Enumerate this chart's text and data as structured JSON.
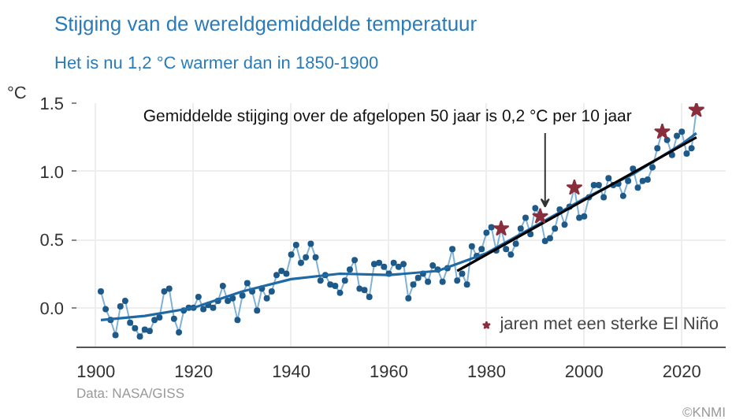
{
  "chart_data": {
    "type": "line",
    "title": "Stijging van de wereldgemiddelde temperatuur",
    "subtitle": "Het is nu 1,2 °C warmer dan in 1850-1900",
    "ylabel": "°C",
    "xlim": [
      1896,
      2029
    ],
    "xticks": [
      1900,
      1920,
      1940,
      1960,
      1980,
      2000,
      2020
    ],
    "ylim": [
      -0.29,
      1.5
    ],
    "yticks": [
      {
        "value": 0,
        "label": "0.0"
      },
      {
        "value": 0.5,
        "label": "0.5"
      },
      {
        "value": 1,
        "label": "1.0"
      },
      {
        "value": 1.5,
        "label": "1.5"
      }
    ],
    "grid": true,
    "legend": "bottom right",
    "marker": "circle",
    "line_style": "solid",
    "series": [
      {
        "color": "#4a90c4",
        "x": [
          1901,
          1902,
          1903,
          1904,
          1905,
          1906,
          1907,
          1908,
          1909,
          1910,
          1911,
          1912,
          1913,
          1914,
          1915,
          1916,
          1917,
          1918,
          1919,
          1920,
          1921,
          1922,
          1923,
          1924,
          1925,
          1926,
          1927,
          1928,
          1929,
          1930,
          1931,
          1932,
          1933,
          1934,
          1935,
          1936,
          1937,
          1938,
          1939,
          1940,
          1941,
          1942,
          1943,
          1944,
          1945,
          1946,
          1947,
          1948,
          1949,
          1950,
          1951,
          1952,
          1953,
          1954,
          1955,
          1956,
          1957,
          1958,
          1959,
          1960,
          1961,
          1962,
          1963,
          1964,
          1965,
          1966,
          1967,
          1968,
          1969,
          1970,
          1971,
          1972,
          1973,
          1974,
          1975,
          1976,
          1977,
          1978,
          1979,
          1980,
          1981,
          1982,
          1983,
          1984,
          1985,
          1986,
          1987,
          1988,
          1989,
          1990,
          1991,
          1992,
          1993,
          1994,
          1995,
          1996,
          1997,
          1998,
          1999,
          2000,
          2001,
          2002,
          2003,
          2004,
          2005,
          2006,
          2007,
          2008,
          2009,
          2010,
          2011,
          2012,
          2013,
          2014,
          2015,
          2016,
          2017,
          2018,
          2019,
          2020,
          2021,
          2022,
          2023
        ],
        "values": [
          0.12,
          -0.01,
          -0.09,
          -0.2,
          0.01,
          0.05,
          -0.11,
          -0.15,
          -0.21,
          -0.16,
          -0.17,
          -0.09,
          -0.07,
          0.12,
          0.14,
          -0.08,
          -0.18,
          -0.02,
          0.0,
          0.0,
          0.08,
          -0.01,
          0.02,
          0.0,
          0.05,
          0.16,
          0.05,
          0.07,
          -0.09,
          0.09,
          0.18,
          0.12,
          -0.02,
          0.14,
          0.07,
          0.12,
          0.24,
          0.27,
          0.25,
          0.39,
          0.46,
          0.33,
          0.37,
          0.47,
          0.37,
          0.2,
          0.24,
          0.17,
          0.16,
          0.11,
          0.2,
          0.28,
          0.35,
          0.14,
          0.13,
          0.08,
          0.32,
          0.33,
          0.3,
          0.25,
          0.33,
          0.3,
          0.32,
          0.07,
          0.17,
          0.22,
          0.25,
          0.19,
          0.31,
          0.28,
          0.19,
          0.29,
          0.43,
          0.2,
          0.25,
          0.17,
          0.45,
          0.38,
          0.43,
          0.55,
          0.59,
          0.42,
          0.58,
          0.43,
          0.39,
          0.47,
          0.58,
          0.66,
          0.54,
          0.73,
          0.67,
          0.49,
          0.51,
          0.58,
          0.72,
          0.61,
          0.74,
          0.88,
          0.66,
          0.67,
          0.81,
          0.9,
          0.9,
          0.81,
          0.95,
          0.9,
          0.91,
          0.82,
          0.93,
          1.02,
          0.88,
          0.93,
          0.94,
          1.03,
          1.17,
          1.29,
          1.23,
          1.12,
          1.26,
          1.29,
          1.13,
          1.17,
          1.45
        ]
      },
      {
        "color": "#1f6aa5",
        "marker": "none",
        "x": [
          1901,
          1910,
          1920,
          1930,
          1940,
          1950,
          1960,
          1970,
          1980,
          1990,
          2000,
          2010,
          2020,
          2023
        ],
        "values": [
          -0.09,
          -0.06,
          0.0,
          0.12,
          0.21,
          0.25,
          0.24,
          0.27,
          0.4,
          0.6,
          0.8,
          0.98,
          1.2,
          1.28
        ]
      },
      {
        "color": "#000000",
        "marker": "none",
        "x": [
          1974,
          2023
        ],
        "values": [
          0.27,
          1.25
        ]
      },
      {
        "type": "scatter",
        "name": "jaren met een sterke El Niño",
        "color": "#8b2e3c",
        "marker": "star",
        "x": [
          1983,
          1991,
          1998,
          2016,
          2023
        ],
        "values": [
          0.58,
          0.67,
          0.88,
          1.29,
          1.45
        ]
      }
    ],
    "annotations": [
      {
        "text": "Gemiddelde stijging over de afgelopen 50 jaar is 0,2 °C per 10 jaar",
        "x": 1992,
        "y": 0.74
      },
      "Data: NASA/GISS",
      "©KNMI"
    ]
  }
}
